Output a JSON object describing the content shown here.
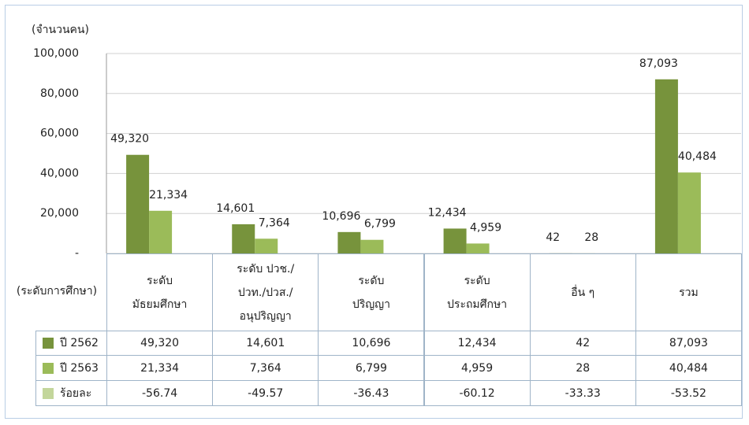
{
  "chart_data": {
    "type": "bar",
    "y_label": "(จำนวนคน)",
    "x_label": "(ระดับการศึกษา)",
    "categories": [
      "ระดับ\nมัธยมศึกษา",
      "ระดับ ปวช./\nปวท./ปวส./\nอนุปริญญา",
      "ระดับ\nปริญญา",
      "ระดับ\nประถมศึกษา",
      "อื่น ๆ",
      "รวม"
    ],
    "series": [
      {
        "name": "ปี 2562",
        "color": "#77933c",
        "values": [
          49320,
          14601,
          10696,
          12434,
          42,
          87093
        ],
        "value_labels": [
          "49,320",
          "14,601",
          "10,696",
          "12,434",
          "42",
          "87,093"
        ]
      },
      {
        "name": "ปี 2563",
        "color": "#9bbb59",
        "values": [
          21334,
          7364,
          6799,
          4959,
          28,
          40484
        ],
        "value_labels": [
          "21,334",
          "7,364",
          "6,799",
          "4,959",
          "28",
          "40,484"
        ]
      }
    ],
    "percent_change": {
      "name": "ร้อยละ",
      "color": "#c3d69b",
      "values": [
        -56.74,
        -49.57,
        -36.43,
        -60.12,
        -33.33,
        -53.52
      ]
    },
    "ylim": [
      0,
      100000
    ],
    "yticks": [
      {
        "value": 0,
        "label": "-"
      },
      {
        "value": 20000,
        "label": "20,000"
      },
      {
        "value": 40000,
        "label": "40,000"
      },
      {
        "value": 60000,
        "label": "60,000"
      },
      {
        "value": 80000,
        "label": "80,000"
      },
      {
        "value": 100000,
        "label": "100,000"
      }
    ],
    "grid": true
  }
}
